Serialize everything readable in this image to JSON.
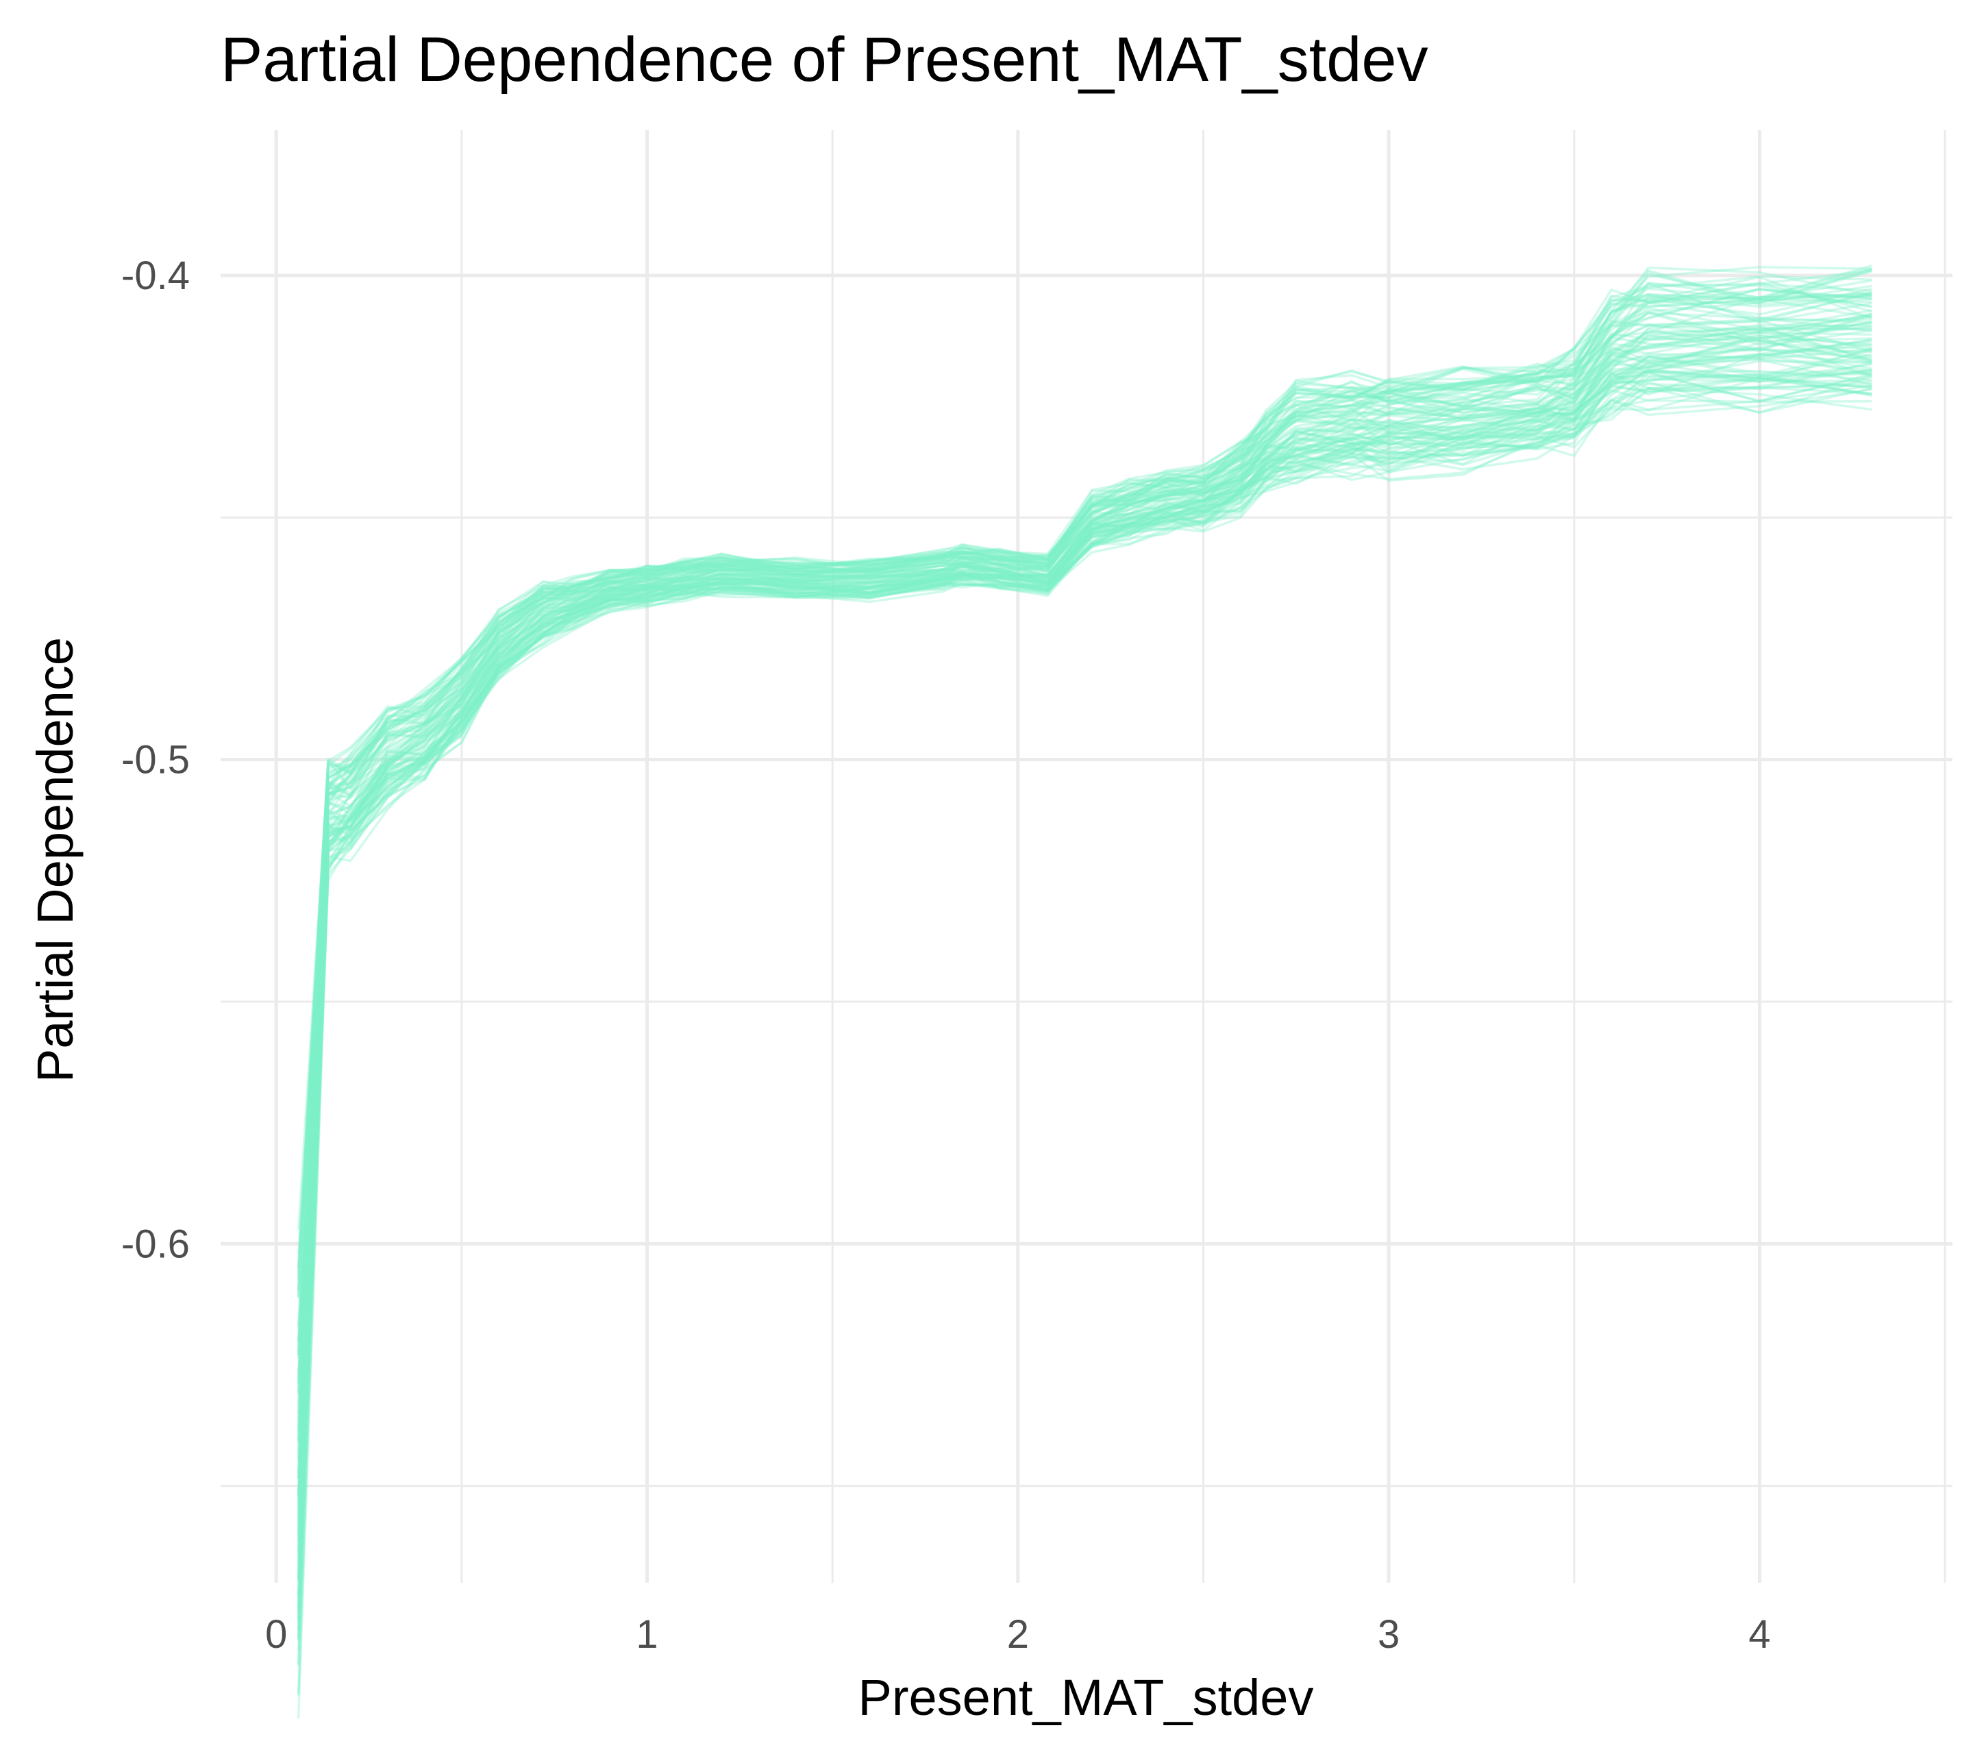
{
  "chart_data": {
    "type": "line",
    "title": "Partial Dependence of Present_MAT_stdev",
    "xlabel": "Present_MAT_stdev",
    "ylabel": "Partial Dependence",
    "xlim": [
      -0.15,
      4.52
    ],
    "ylim": [
      -0.67,
      -0.37
    ],
    "x_ticks": [
      0,
      1,
      2,
      3,
      4
    ],
    "x_tick_labels": [
      "0",
      "1",
      "2",
      "3",
      "4"
    ],
    "x_minor_ticks": [
      0.5,
      1.5,
      2.5,
      3.5,
      4.5
    ],
    "y_ticks": [
      -0.4,
      -0.5,
      -0.6
    ],
    "y_tick_labels": [
      "-0.4",
      "-0.5",
      "-0.6"
    ],
    "y_minor_ticks": [
      -0.45,
      -0.55,
      -0.65
    ],
    "grid": true,
    "legend": "none",
    "line_color": "#7ff0c8",
    "line_opacity": 0.35,
    "n_lines": 100,
    "band_spread_scale": 0.9,
    "central_curve": {
      "x": [
        0.06,
        0.14,
        0.2,
        0.3,
        0.4,
        0.5,
        0.6,
        0.72,
        0.8,
        0.9,
        1.0,
        1.1,
        1.2,
        1.4,
        1.6,
        1.8,
        1.85,
        1.95,
        2.08,
        2.2,
        2.3,
        2.4,
        2.5,
        2.6,
        2.67,
        2.75,
        2.9,
        3.0,
        3.2,
        3.4,
        3.5,
        3.6,
        3.7,
        4.0,
        4.3
      ],
      "y": [
        -0.648,
        -0.512,
        -0.51,
        -0.5,
        -0.496,
        -0.488,
        -0.477,
        -0.47,
        -0.468,
        -0.465,
        -0.464,
        -0.463,
        -0.462,
        -0.463,
        -0.463,
        -0.461,
        -0.46,
        -0.461,
        -0.462,
        -0.451,
        -0.449,
        -0.447,
        -0.446,
        -0.442,
        -0.437,
        -0.433,
        -0.431,
        -0.431,
        -0.43,
        -0.428,
        -0.426,
        -0.417,
        -0.414,
        -0.414,
        -0.414
      ]
    },
    "band_spread": [
      0.045,
      0.012,
      0.011,
      0.01,
      0.009,
      0.008,
      0.007,
      0.006,
      0.005,
      0.004,
      0.004,
      0.004,
      0.004,
      0.004,
      0.004,
      0.004,
      0.004,
      0.004,
      0.004,
      0.006,
      0.006,
      0.006,
      0.006,
      0.007,
      0.008,
      0.01,
      0.01,
      0.01,
      0.01,
      0.01,
      0.01,
      0.012,
      0.014,
      0.014,
      0.014
    ]
  }
}
